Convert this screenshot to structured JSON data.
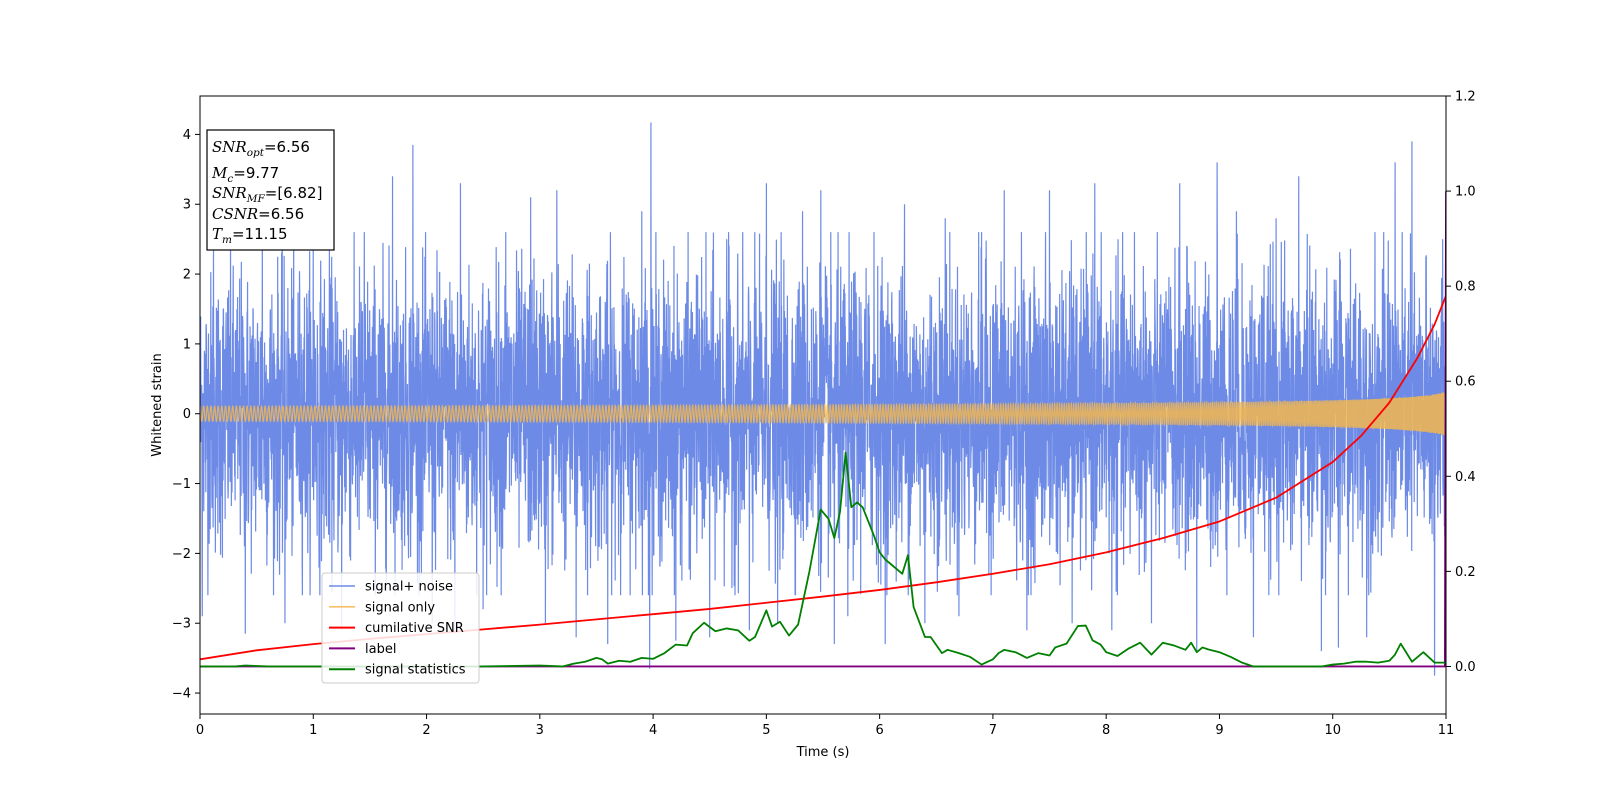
{
  "chart_data": {
    "type": "line",
    "title": "",
    "xlabel": "Time (s)",
    "ylabel": "Whitened strain",
    "xlim": [
      0,
      11
    ],
    "ylim": [
      -4.3,
      4.55
    ],
    "y2lim": [
      -0.1,
      1.2
    ],
    "xticks": [
      0,
      1,
      2,
      3,
      4,
      5,
      6,
      7,
      8,
      9,
      10,
      11
    ],
    "yticks": [
      -4,
      -3,
      -2,
      -1,
      0,
      1,
      2,
      3,
      4
    ],
    "y2ticks": [
      0.0,
      0.2,
      0.4,
      0.6,
      0.8,
      1.0,
      1.2
    ],
    "xtick_labels": [
      "0",
      "1",
      "2",
      "3",
      "4",
      "5",
      "6",
      "7",
      "8",
      "9",
      "10",
      "11"
    ],
    "ytick_labels": [
      "−4",
      "−3",
      "−2",
      "−1",
      "0",
      "1",
      "2",
      "3",
      "4"
    ],
    "y2tick_labels": [
      "0.0",
      "0.2",
      "0.4",
      "0.6",
      "0.8",
      "1.0",
      "1.2"
    ],
    "grid": false,
    "legend_position": "lower-left",
    "annotation": {
      "lines": [
        {
          "main": "SNR",
          "sub": "opt",
          "value": "=6.56"
        },
        {
          "main": "M",
          "sub": "c",
          "value": "=9.77"
        },
        {
          "main": "SNR",
          "sub": "MF",
          "value": "=[6.82]"
        },
        {
          "main": "CSNR",
          "sub": "",
          "value": "=6.56"
        },
        {
          "main": "T",
          "sub": "m",
          "value": "=11.15"
        }
      ]
    },
    "series": [
      {
        "name": "signal+ noise",
        "axis": "left",
        "color": "#6d8be6",
        "kind": "noise",
        "sigma": 1.0,
        "spike_points": [
          [
            0.02,
            -2.9
          ],
          [
            0.12,
            2.5
          ],
          [
            0.4,
            -3.15
          ],
          [
            0.55,
            2.7
          ],
          [
            0.75,
            -3.0
          ],
          [
            1.0,
            2.4
          ],
          [
            1.25,
            -3.1
          ],
          [
            1.45,
            2.6
          ],
          [
            1.7,
            3.4
          ],
          [
            1.88,
            3.85
          ],
          [
            2.05,
            -3.0
          ],
          [
            2.25,
            -3.15
          ],
          [
            2.3,
            3.3
          ],
          [
            2.5,
            -2.8
          ],
          [
            2.7,
            2.6
          ],
          [
            2.92,
            3.1
          ],
          [
            3.05,
            -3.0
          ],
          [
            3.15,
            3.2
          ],
          [
            3.32,
            -3.2
          ],
          [
            3.6,
            -3.3
          ],
          [
            3.9,
            2.9
          ],
          [
            3.97,
            -3.65
          ],
          [
            3.98,
            4.17
          ],
          [
            4.2,
            -3.25
          ],
          [
            4.5,
            -3.2
          ],
          [
            4.65,
            2.5
          ],
          [
            4.85,
            -3.1
          ],
          [
            5.0,
            3.3
          ],
          [
            5.1,
            -3.0
          ],
          [
            5.32,
            2.9
          ],
          [
            5.48,
            3.2
          ],
          [
            5.6,
            -3.3
          ],
          [
            5.72,
            -2.9
          ],
          [
            5.95,
            2.6
          ],
          [
            6.05,
            -3.3
          ],
          [
            6.22,
            3.0
          ],
          [
            6.4,
            -3.0
          ],
          [
            6.58,
            2.8
          ],
          [
            6.7,
            -2.9
          ],
          [
            6.9,
            2.6
          ],
          [
            7.1,
            3.2
          ],
          [
            7.3,
            -3.1
          ],
          [
            7.5,
            3.2
          ],
          [
            7.7,
            -3.0
          ],
          [
            7.9,
            3.3
          ],
          [
            8.05,
            -3.1
          ],
          [
            8.25,
            2.6
          ],
          [
            8.4,
            -3.0
          ],
          [
            8.65,
            3.3
          ],
          [
            8.8,
            -3.4
          ],
          [
            8.98,
            3.6
          ],
          [
            9.15,
            2.9
          ],
          [
            9.3,
            -3.2
          ],
          [
            9.5,
            2.8
          ],
          [
            9.7,
            3.4
          ],
          [
            9.9,
            -3.4
          ],
          [
            10.05,
            -3.35
          ],
          [
            10.3,
            -3.2
          ],
          [
            10.55,
            3.6
          ],
          [
            10.7,
            3.9
          ],
          [
            10.9,
            -3.75
          ],
          [
            10.97,
            2.5
          ]
        ]
      },
      {
        "name": "signal only",
        "axis": "left",
        "color": "#f5b74d",
        "kind": "chirp",
        "amplitude_end": 0.32,
        "merger_time": 11.15
      },
      {
        "name": "cumilative SNR",
        "axis": "right",
        "color": "#ff0000",
        "x": [
          0,
          0.5,
          1,
          1.5,
          2,
          2.5,
          3,
          3.5,
          4,
          4.5,
          5,
          5.5,
          6,
          6.5,
          7,
          7.5,
          8,
          8.5,
          9,
          9.5,
          10,
          10.25,
          10.5,
          10.75,
          10.9,
          11.0
        ],
        "y": [
          0.015,
          0.034,
          0.047,
          0.058,
          0.068,
          0.078,
          0.088,
          0.099,
          0.11,
          0.121,
          0.134,
          0.147,
          0.161,
          0.177,
          0.195,
          0.215,
          0.24,
          0.27,
          0.305,
          0.355,
          0.43,
          0.485,
          0.555,
          0.65,
          0.72,
          0.78
        ]
      },
      {
        "name": "label",
        "axis": "right",
        "color": "#800080",
        "x": [
          0,
          10.99,
          11.0
        ],
        "y": [
          0.0,
          0.0,
          1.0
        ]
      },
      {
        "name": "signal statistics",
        "axis": "right",
        "color": "#008000",
        "x": [
          0,
          0.3,
          0.4,
          0.6,
          0.8,
          1.0,
          1.5,
          2.0,
          2.5,
          3.0,
          3.2,
          3.3,
          3.4,
          3.5,
          3.55,
          3.6,
          3.7,
          3.8,
          3.9,
          4.0,
          4.1,
          4.2,
          4.3,
          4.35,
          4.45,
          4.55,
          4.65,
          4.75,
          4.85,
          4.9,
          5.0,
          5.05,
          5.12,
          5.2,
          5.28,
          5.38,
          5.48,
          5.55,
          5.6,
          5.65,
          5.7,
          5.75,
          5.8,
          5.85,
          5.9,
          5.95,
          6.0,
          6.05,
          6.1,
          6.2,
          6.25,
          6.3,
          6.4,
          6.45,
          6.55,
          6.6,
          6.7,
          6.8,
          6.9,
          7.0,
          7.05,
          7.1,
          7.2,
          7.3,
          7.4,
          7.5,
          7.55,
          7.65,
          7.75,
          7.82,
          7.88,
          7.95,
          8.0,
          8.1,
          8.2,
          8.3,
          8.4,
          8.5,
          8.6,
          8.7,
          8.75,
          8.8,
          8.85,
          8.9,
          9.0,
          9.1,
          9.2,
          9.3,
          9.5,
          9.7,
          9.9,
          10.0,
          10.1,
          10.2,
          10.3,
          10.4,
          10.5,
          10.55,
          10.6,
          10.7,
          10.8,
          10.9,
          11.0
        ],
        "y": [
          0.0,
          0.0,
          0.002,
          0.0,
          0.0,
          0.0,
          0.0,
          0.0,
          0.0,
          0.002,
          0.0,
          0.006,
          0.01,
          0.018,
          0.015,
          0.006,
          0.012,
          0.01,
          0.018,
          0.016,
          0.028,
          0.046,
          0.044,
          0.07,
          0.092,
          0.074,
          0.08,
          0.076,
          0.054,
          0.062,
          0.118,
          0.084,
          0.094,
          0.065,
          0.088,
          0.2,
          0.33,
          0.31,
          0.27,
          0.325,
          0.45,
          0.335,
          0.345,
          0.335,
          0.305,
          0.275,
          0.24,
          0.225,
          0.215,
          0.195,
          0.234,
          0.125,
          0.062,
          0.062,
          0.028,
          0.035,
          0.028,
          0.02,
          0.004,
          0.015,
          0.028,
          0.035,
          0.03,
          0.018,
          0.028,
          0.023,
          0.04,
          0.048,
          0.085,
          0.086,
          0.055,
          0.046,
          0.03,
          0.022,
          0.038,
          0.05,
          0.025,
          0.05,
          0.044,
          0.035,
          0.05,
          0.03,
          0.04,
          0.036,
          0.03,
          0.02,
          0.008,
          0.0,
          0.0,
          0.0,
          0.0,
          0.004,
          0.006,
          0.01,
          0.01,
          0.008,
          0.012,
          0.025,
          0.048,
          0.01,
          0.03,
          0.008,
          0.008
        ]
      }
    ]
  }
}
